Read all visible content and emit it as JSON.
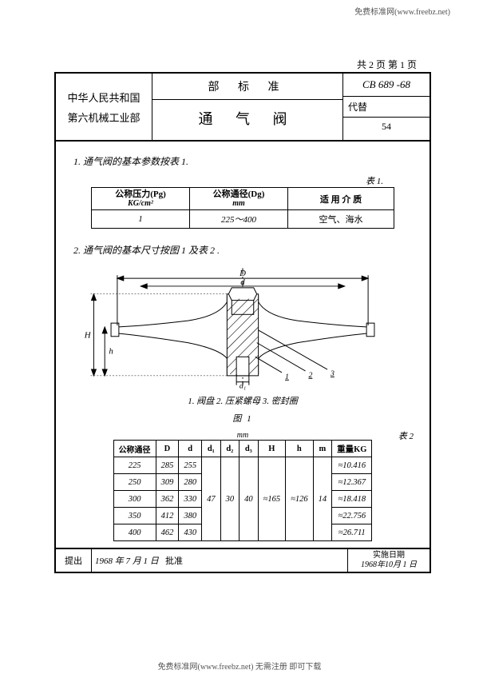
{
  "watermark_top": "免费标准网(www.freebz.net)",
  "watermark_bottom": "免费标准网(www.freebz.net) 无需注册 即可下载",
  "page_mark": "共 2 页 第 1 页",
  "header": {
    "left_line1": "中华人民共和国",
    "left_line2": "第六机械工业部",
    "mid_top": "部 标 准",
    "mid_bot": "通 气 阀",
    "right_top": "CB 689 -68",
    "right_mid": "代替",
    "right_bot": "54"
  },
  "sec1_title": "1. 通气阀的基本参数按表 1.",
  "t1_label": "表 1.",
  "t1": {
    "h1a": "公称压力(Pg)",
    "h1b": "KG/cm²",
    "h2a": "公称通径(Dg)",
    "h2b": "mm",
    "h3": "适 用 介 质",
    "r1": "1",
    "r2": "225～400",
    "r3": "空气、海水"
  },
  "sec2_title": "2. 通气阀的基本尺寸按图 1 及表 2 .",
  "dims": {
    "D": "D",
    "d": "d",
    "H": "H",
    "h": "h",
    "d1": "d₁"
  },
  "callouts": {
    "c1": "1",
    "c2": "2",
    "c3": "3"
  },
  "legend": "1. 阀盘    2. 压紧螺母    3. 密封圈",
  "fig_caption": "图  1",
  "t2_unit": "mm",
  "t2_label": "表 2",
  "t2": {
    "cols": [
      "公称通径",
      "D",
      "d",
      "d₁",
      "d₂",
      "d₃",
      "H",
      "h",
      "m",
      "重量KG"
    ],
    "rows": [
      [
        "225",
        "285",
        "255",
        "",
        "",
        "",
        "",
        "",
        "",
        "≈10.416"
      ],
      [
        "250",
        "309",
        "280",
        "",
        "",
        "",
        "",
        "",
        "",
        "≈12.367"
      ],
      [
        "300",
        "362",
        "330",
        "47",
        "30",
        "40",
        "≈165",
        "≈126",
        "14",
        "≈18.418"
      ],
      [
        "350",
        "412",
        "380",
        "",
        "",
        "",
        "",
        "",
        "",
        "≈22.756"
      ],
      [
        "400",
        "462",
        "430",
        "",
        "",
        "",
        "",
        "",
        "",
        "≈26.711"
      ]
    ]
  },
  "footer": {
    "l": "提出",
    "m_date": "1968 年 7 月 1 日",
    "m_appr": "批准",
    "r_line1": "实施日期",
    "r_line2": "1968年10月 1 日"
  },
  "colors": {
    "line": "#000000",
    "hatch": "#000000",
    "bg": "#ffffff"
  }
}
